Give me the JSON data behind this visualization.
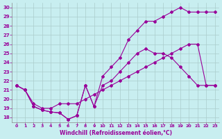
{
  "xlabel": "Windchill (Refroidissement éolien,°C)",
  "bg_color": "#c8eef0",
  "line_color": "#990099",
  "grid_color": "#aacccc",
  "xlim": [
    -0.5,
    23.5
  ],
  "ylim": [
    17.5,
    30.5
  ],
  "xticks": [
    0,
    1,
    2,
    3,
    4,
    5,
    6,
    7,
    8,
    9,
    10,
    11,
    12,
    13,
    14,
    15,
    16,
    17,
    18,
    19,
    20,
    21,
    22,
    23
  ],
  "yticks": [
    18,
    19,
    20,
    21,
    22,
    23,
    24,
    25,
    26,
    27,
    28,
    29,
    30
  ],
  "line1_x": [
    0,
    1,
    2,
    3,
    4,
    5,
    6,
    7,
    8,
    9,
    10,
    11,
    12,
    13,
    14,
    15,
    16,
    17,
    18,
    19,
    20,
    21,
    22,
    23
  ],
  "line1_y": [
    21.5,
    21.0,
    19.2,
    18.8,
    18.6,
    18.5,
    17.8,
    18.2,
    21.5,
    19.2,
    22.5,
    23.5,
    24.5,
    26.5,
    27.5,
    28.5,
    28.5,
    29.0,
    29.5,
    30.0,
    29.5,
    29.5,
    29.5,
    29.5
  ],
  "line2_x": [
    0,
    1,
    2,
    3,
    4,
    5,
    6,
    7,
    8,
    9,
    10,
    11,
    12,
    13,
    14,
    15,
    16,
    17,
    18,
    19,
    20,
    21,
    22,
    23
  ],
  "line2_y": [
    21.5,
    21.0,
    19.2,
    18.8,
    18.6,
    18.5,
    17.8,
    18.2,
    21.5,
    19.2,
    21.5,
    22.0,
    23.0,
    24.0,
    25.0,
    25.5,
    25.0,
    25.0,
    24.5,
    23.5,
    22.5,
    21.5,
    21.5,
    21.5
  ],
  "line3_x": [
    0,
    1,
    2,
    3,
    4,
    5,
    6,
    7,
    8,
    9,
    10,
    11,
    12,
    13,
    14,
    15,
    16,
    17,
    18,
    19,
    20,
    21,
    22,
    23
  ],
  "line3_y": [
    21.5,
    21.0,
    19.5,
    19.0,
    19.0,
    19.5,
    19.5,
    19.5,
    20.0,
    20.5,
    21.0,
    21.5,
    22.0,
    22.5,
    23.0,
    23.5,
    24.0,
    24.5,
    25.0,
    25.5,
    26.0,
    26.0,
    21.5,
    21.5
  ]
}
